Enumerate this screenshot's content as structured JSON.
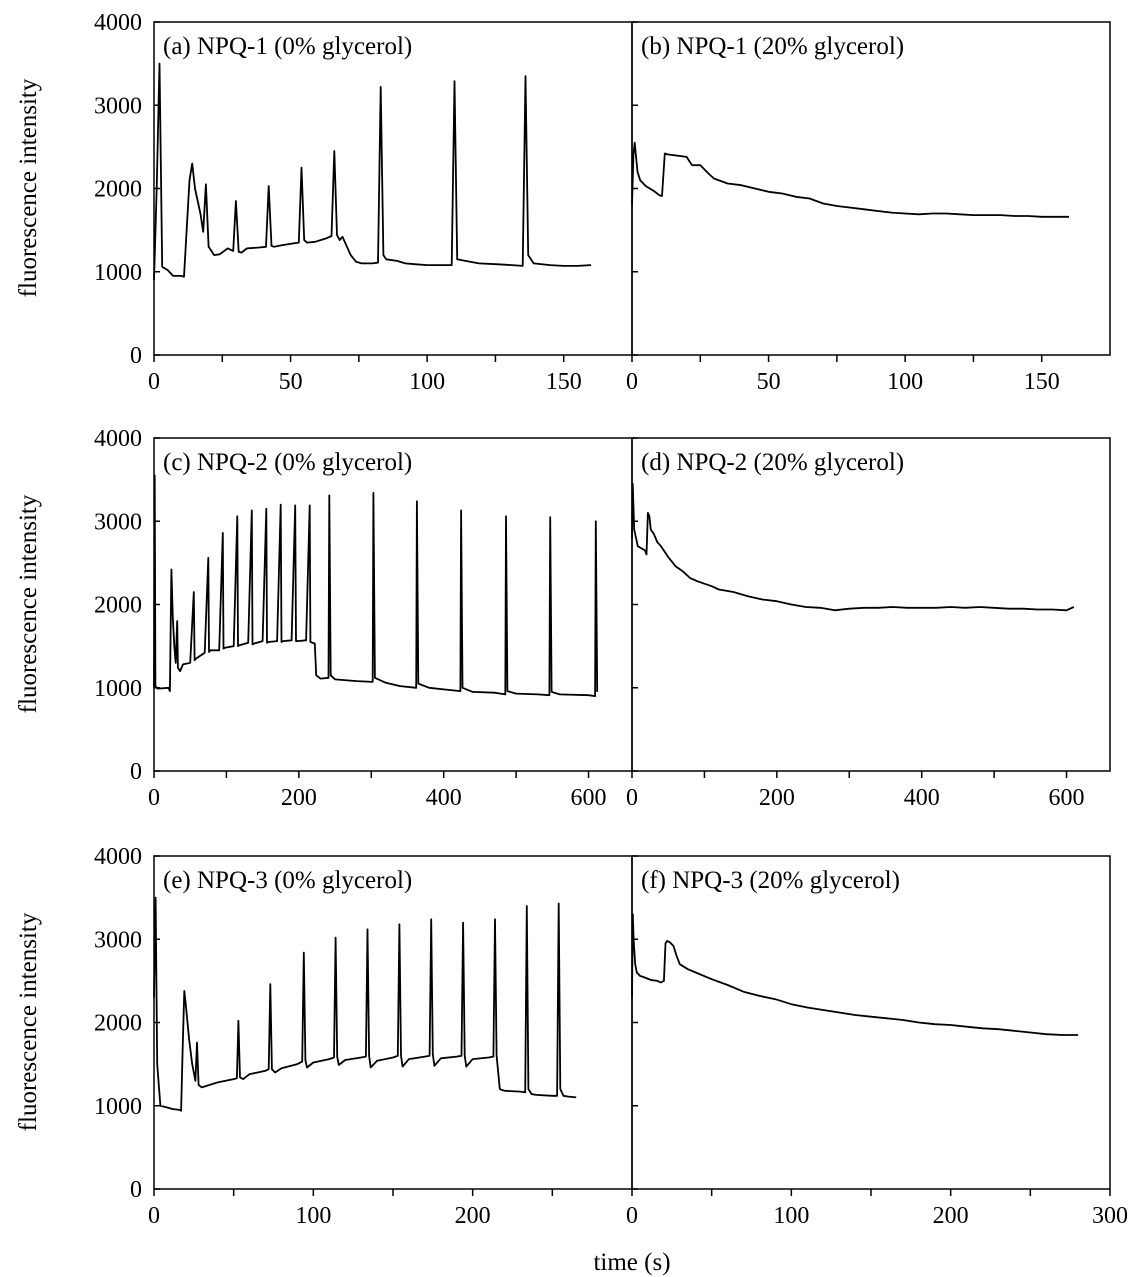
{
  "figure": {
    "ylabel": "fluorescence intensity",
    "xlabel": "time (s)"
  },
  "colors": {
    "line": "#000000",
    "axis": "#000000",
    "background": "#ffffff"
  },
  "chart_data": [
    {
      "type": "line",
      "title": "(a) NPQ-1  (0% glycerol)",
      "ylabel": "fluorescence intensity",
      "xlabel": "",
      "xlim": [
        0,
        175
      ],
      "ylim": [
        0,
        4000
      ],
      "xticks": [
        0,
        50,
        100,
        150
      ],
      "yticks": [
        0,
        1000,
        2000,
        3000,
        4000
      ],
      "grid": false,
      "x": [
        0,
        1,
        2,
        3,
        5,
        7,
        10,
        11,
        13,
        14,
        15,
        17,
        18,
        19,
        20,
        21,
        22,
        24,
        27,
        29,
        30,
        31,
        32,
        34,
        38,
        41,
        42,
        43,
        44,
        47,
        51,
        53,
        54,
        55,
        56,
        59,
        63,
        65,
        66,
        67,
        68,
        69,
        72,
        74,
        76,
        80,
        82,
        83,
        84,
        85,
        89,
        92,
        96,
        100,
        105,
        109,
        110,
        111,
        114,
        119,
        126,
        131,
        135,
        136,
        137,
        139,
        145,
        150,
        155,
        160
      ],
      "y": [
        900,
        2000,
        3500,
        1060,
        1020,
        950,
        950,
        940,
        2100,
        2300,
        2000,
        1700,
        1480,
        2050,
        1300,
        1250,
        1200,
        1210,
        1280,
        1250,
        1850,
        1240,
        1230,
        1280,
        1290,
        1300,
        2030,
        1310,
        1300,
        1320,
        1340,
        1350,
        2250,
        1380,
        1350,
        1360,
        1400,
        1430,
        2450,
        1440,
        1380,
        1420,
        1200,
        1120,
        1100,
        1100,
        1110,
        3220,
        1200,
        1150,
        1130,
        1100,
        1090,
        1080,
        1080,
        1080,
        3290,
        1150,
        1130,
        1100,
        1090,
        1080,
        1070,
        3350,
        1200,
        1100,
        1080,
        1070,
        1070,
        1080
      ]
    },
    {
      "type": "line",
      "title": "(b) NPQ-1 (20% glycerol)",
      "ylabel": "",
      "xlabel": "",
      "xlim": [
        0,
        175
      ],
      "ylim": [
        0,
        4000
      ],
      "xticks": [
        0,
        50,
        100,
        150
      ],
      "yticks": [
        0,
        1000,
        2000,
        3000,
        4000
      ],
      "grid": false,
      "x": [
        0,
        0.5,
        1,
        2,
        3,
        5,
        8,
        10,
        11,
        12,
        13,
        20,
        22,
        25,
        28,
        30,
        35,
        40,
        45,
        50,
        55,
        60,
        65,
        70,
        75,
        80,
        85,
        90,
        95,
        100,
        105,
        110,
        115,
        120,
        125,
        130,
        135,
        140,
        145,
        150,
        155,
        160
      ],
      "y": [
        1800,
        2400,
        2550,
        2200,
        2100,
        2030,
        1970,
        1920,
        1910,
        2420,
        2410,
        2380,
        2280,
        2280,
        2180,
        2120,
        2060,
        2040,
        2000,
        1960,
        1940,
        1900,
        1880,
        1820,
        1790,
        1770,
        1750,
        1730,
        1710,
        1700,
        1690,
        1700,
        1700,
        1690,
        1680,
        1680,
        1680,
        1670,
        1670,
        1660,
        1660,
        1660
      ]
    },
    {
      "type": "line",
      "title": "(c) NPQ-2 (0% glycerol)",
      "ylabel": "fluorescence intensity",
      "xlabel": "",
      "xlim": [
        0,
        660
      ],
      "ylim": [
        0,
        4000
      ],
      "xticks": [
        0,
        200,
        400,
        600
      ],
      "yticks": [
        0,
        1000,
        2000,
        3000,
        4000
      ],
      "grid": false,
      "x": [
        0,
        1,
        2,
        5,
        20,
        22,
        24,
        26,
        28,
        30,
        32,
        33,
        36,
        40,
        50,
        55,
        56,
        58,
        70,
        75,
        76,
        78,
        90,
        95,
        96,
        98,
        110,
        115,
        116,
        118,
        130,
        135,
        136,
        138,
        150,
        155,
        156,
        158,
        170,
        175,
        176,
        178,
        190,
        195,
        196,
        198,
        210,
        215,
        216,
        222,
        224,
        230,
        241,
        242,
        244,
        250,
        280,
        302,
        303,
        305,
        320,
        340,
        362,
        363,
        365,
        380,
        400,
        423,
        424,
        426,
        440,
        470,
        485,
        486,
        488,
        500,
        530,
        546,
        547,
        549,
        560,
        600,
        609,
        610,
        612
      ],
      "y": [
        1000,
        3550,
        1020,
        990,
        1000,
        960,
        2420,
        1850,
        1500,
        1300,
        1800,
        1240,
        1200,
        1280,
        1300,
        2150,
        1330,
        1350,
        1420,
        2560,
        1430,
        1450,
        1450,
        2860,
        1470,
        1480,
        1500,
        3060,
        1500,
        1510,
        1540,
        3130,
        1520,
        1530,
        1560,
        3150,
        1540,
        1550,
        1560,
        3200,
        1550,
        1560,
        1570,
        3190,
        1560,
        1560,
        1570,
        3190,
        1550,
        1530,
        1150,
        1110,
        1120,
        3310,
        1150,
        1100,
        1080,
        1070,
        3340,
        1120,
        1060,
        1020,
        1000,
        3240,
        1050,
        1000,
        980,
        960,
        3130,
        1000,
        950,
        940,
        920,
        3060,
        960,
        930,
        920,
        910,
        3050,
        950,
        920,
        910,
        900,
        3000,
        950
      ]
    },
    {
      "type": "line",
      "title": "(d) NPQ-2 (20% glycerol)",
      "ylabel": "",
      "xlabel": "",
      "xlim": [
        0,
        660
      ],
      "ylim": [
        0,
        4000
      ],
      "xticks": [
        0,
        200,
        400,
        600
      ],
      "yticks": [
        0,
        1000,
        2000,
        3000,
        4000
      ],
      "grid": false,
      "x": [
        0,
        1,
        3,
        8,
        18,
        20,
        22,
        24,
        26,
        30,
        35,
        40,
        50,
        60,
        70,
        80,
        90,
        100,
        110,
        120,
        140,
        160,
        180,
        200,
        220,
        240,
        260,
        280,
        300,
        320,
        340,
        360,
        380,
        400,
        420,
        440,
        460,
        480,
        500,
        520,
        540,
        560,
        580,
        600,
        610
      ],
      "y": [
        2800,
        3450,
        2900,
        2700,
        2650,
        2600,
        3100,
        3060,
        2900,
        2850,
        2750,
        2700,
        2570,
        2460,
        2400,
        2320,
        2280,
        2250,
        2220,
        2180,
        2150,
        2100,
        2060,
        2040,
        2000,
        1970,
        1960,
        1930,
        1950,
        1960,
        1960,
        1970,
        1960,
        1960,
        1960,
        1970,
        1960,
        1970,
        1960,
        1950,
        1950,
        1940,
        1940,
        1930,
        1970
      ]
    },
    {
      "type": "line",
      "title": "(e) NPQ-3 (0% glycerol)",
      "ylabel": "fluorescence intensity",
      "xlabel": "",
      "xlim": [
        0,
        300
      ],
      "ylim": [
        0,
        4000
      ],
      "xticks": [
        0,
        100,
        200
      ],
      "yticks": [
        0,
        1000,
        2000,
        3000,
        4000
      ],
      "grid": false,
      "x": [
        0,
        1,
        2,
        4,
        8,
        12,
        16,
        17,
        18,
        19,
        20,
        22,
        24,
        26,
        27,
        28,
        30,
        35,
        40,
        45,
        50,
        52,
        53,
        54,
        56,
        60,
        65,
        70,
        72,
        73,
        74,
        76,
        80,
        90,
        93,
        94,
        95,
        96,
        100,
        110,
        113,
        114,
        115,
        116,
        120,
        130,
        133,
        134,
        135,
        136,
        140,
        150,
        153,
        154,
        155,
        156,
        160,
        170,
        173,
        174,
        175,
        176,
        180,
        190,
        193,
        194,
        195,
        196,
        200,
        210,
        213,
        214,
        215,
        217,
        220,
        230,
        233,
        234,
        235,
        237,
        240,
        250,
        253,
        254,
        255,
        257,
        260,
        265
      ],
      "y": [
        2300,
        3500,
        1500,
        1000,
        980,
        960,
        950,
        940,
        1700,
        2380,
        2200,
        1800,
        1500,
        1300,
        1760,
        1250,
        1220,
        1250,
        1280,
        1300,
        1320,
        1330,
        2020,
        1340,
        1320,
        1380,
        1400,
        1420,
        1440,
        2460,
        1440,
        1400,
        1450,
        1500,
        1530,
        2840,
        1550,
        1460,
        1520,
        1560,
        1580,
        3020,
        1590,
        1490,
        1550,
        1580,
        1590,
        3120,
        1600,
        1460,
        1540,
        1580,
        1600,
        3180,
        1600,
        1470,
        1560,
        1590,
        1600,
        3240,
        1620,
        1480,
        1570,
        1590,
        1600,
        3200,
        1600,
        1470,
        1560,
        1580,
        1590,
        3240,
        1600,
        1200,
        1180,
        1170,
        1160,
        3400,
        1200,
        1140,
        1130,
        1120,
        1120,
        3430,
        1200,
        1120,
        1110,
        1100
      ]
    },
    {
      "type": "line",
      "title": "(f) NPQ-3 (20% glycerol)",
      "ylabel": "",
      "xlabel": "",
      "xlim": [
        0,
        300
      ],
      "ylim": [
        0,
        4000
      ],
      "xticks": [
        0,
        100,
        200,
        300
      ],
      "yticks": [
        0,
        1000,
        2000,
        3000,
        4000
      ],
      "grid": false,
      "x": [
        0,
        0.5,
        1,
        2,
        3,
        5,
        8,
        12,
        16,
        18,
        20,
        21,
        22,
        24,
        26,
        28,
        30,
        35,
        40,
        50,
        60,
        70,
        80,
        90,
        100,
        110,
        120,
        130,
        140,
        150,
        160,
        170,
        180,
        190,
        200,
        210,
        220,
        230,
        240,
        250,
        260,
        270,
        280
      ],
      "y": [
        2300,
        3300,
        3000,
        2700,
        2600,
        2560,
        2540,
        2510,
        2500,
        2480,
        2500,
        2950,
        2980,
        2960,
        2920,
        2800,
        2700,
        2640,
        2600,
        2520,
        2450,
        2370,
        2320,
        2280,
        2220,
        2180,
        2150,
        2120,
        2090,
        2070,
        2050,
        2030,
        2000,
        1980,
        1970,
        1950,
        1930,
        1920,
        1900,
        1880,
        1860,
        1850,
        1850
      ]
    }
  ]
}
